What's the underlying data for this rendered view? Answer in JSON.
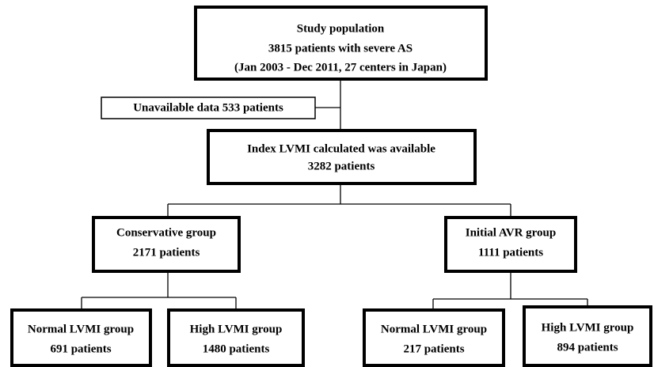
{
  "nodes": [
    {
      "lines": [
        "Study population",
        "3815 patients with severe AS",
        "(Jan 2003 - Dec 2011, 27 centers in Japan)"
      ]
    },
    {
      "lines": [
        "Unavailable data 533 patients"
      ]
    },
    {
      "lines": [
        "Index LVMI calculated was available",
        "3282 patients"
      ]
    },
    {
      "lines": [
        "Conservative group",
        "2171 patients"
      ]
    },
    {
      "lines": [
        "Initial AVR group",
        "1111 patients"
      ]
    },
    {
      "lines": [
        "Normal LVMI group",
        "691 patients"
      ]
    },
    {
      "lines": [
        "High LVMI group",
        "1480 patients"
      ]
    },
    {
      "lines": [
        "Normal LVMI group",
        "217 patients"
      ]
    },
    {
      "lines": [
        "High LVMI group",
        "894 patients"
      ]
    }
  ]
}
